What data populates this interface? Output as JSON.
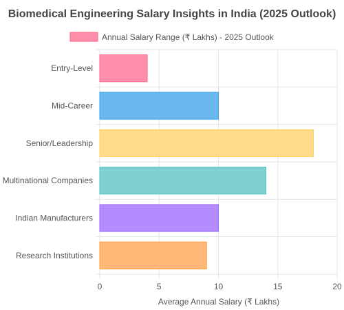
{
  "chart_data": {
    "type": "bar",
    "orientation": "horizontal",
    "title": "Biomedical Engineering Salary Insights in India (2025 Outlook)",
    "categories": [
      "Entry-Level",
      "Mid-Career",
      "Senior/Leadership",
      "Multinational Companies",
      "Indian Manufacturers",
      "Research Institutions"
    ],
    "series": [
      {
        "name": "Annual Salary Range (₹ Lakhs) - 2025 Outlook",
        "values": [
          4,
          10,
          18,
          14,
          10,
          9
        ]
      }
    ],
    "bar_colors": [
      "#ff8fab",
      "#6ab8ee",
      "#ffdc89",
      "#7fd1d1",
      "#b48cff",
      "#ffb877"
    ],
    "bar_borders": [
      "#ff6384",
      "#36a2eb",
      "#ffce56",
      "#4bc0c0",
      "#9966ff",
      "#ff9f40"
    ],
    "xlabel": "Average Annual Salary (₹ Lakhs)",
    "ylabel": "",
    "xlim": [
      0,
      20
    ],
    "x_ticks": [
      0,
      5,
      10,
      15,
      20
    ],
    "grid": true,
    "legend": "top-center"
  }
}
